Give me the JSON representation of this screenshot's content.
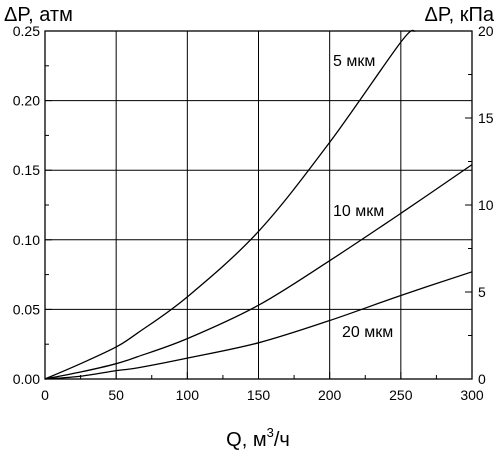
{
  "chart_data": {
    "type": "line",
    "left_axis_title": "ΔP, атм",
    "right_axis_title": "ΔP, кПа",
    "x_axis_title": {
      "base": "Q, м",
      "sup": "3",
      "tail": "/ч"
    },
    "x_ticks": [
      "0",
      "50",
      "100",
      "150",
      "200",
      "250",
      "300"
    ],
    "y_left_ticks": [
      "0.00",
      "0.05",
      "0.10",
      "0.15",
      "0.20",
      "0.25"
    ],
    "y_right_ticks": [
      "0",
      "5",
      "10",
      "15",
      "20"
    ],
    "xlim": [
      0,
      300
    ],
    "ylim_left": [
      0,
      0.25
    ],
    "ylim_right": [
      0,
      20
    ],
    "grid": true,
    "series": [
      {
        "name": "5 мкм",
        "x": [
          0,
          25,
          50,
          65,
          100,
          150,
          200,
          250,
          260
        ],
        "y": [
          0.0,
          0.011,
          0.023,
          0.033,
          0.059,
          0.106,
          0.17,
          0.242,
          0.25
        ]
      },
      {
        "name": "10 мкм",
        "x": [
          0,
          25,
          50,
          65,
          100,
          150,
          200,
          250,
          300
        ],
        "y": [
          0.0,
          0.005,
          0.011,
          0.016,
          0.029,
          0.053,
          0.085,
          0.119,
          0.154
        ]
      },
      {
        "name": "20 мкм",
        "x": [
          0,
          25,
          50,
          65,
          100,
          150,
          200,
          250,
          300
        ],
        "y": [
          0.0,
          0.002,
          0.006,
          0.008,
          0.015,
          0.026,
          0.042,
          0.06,
          0.077
        ]
      }
    ]
  }
}
